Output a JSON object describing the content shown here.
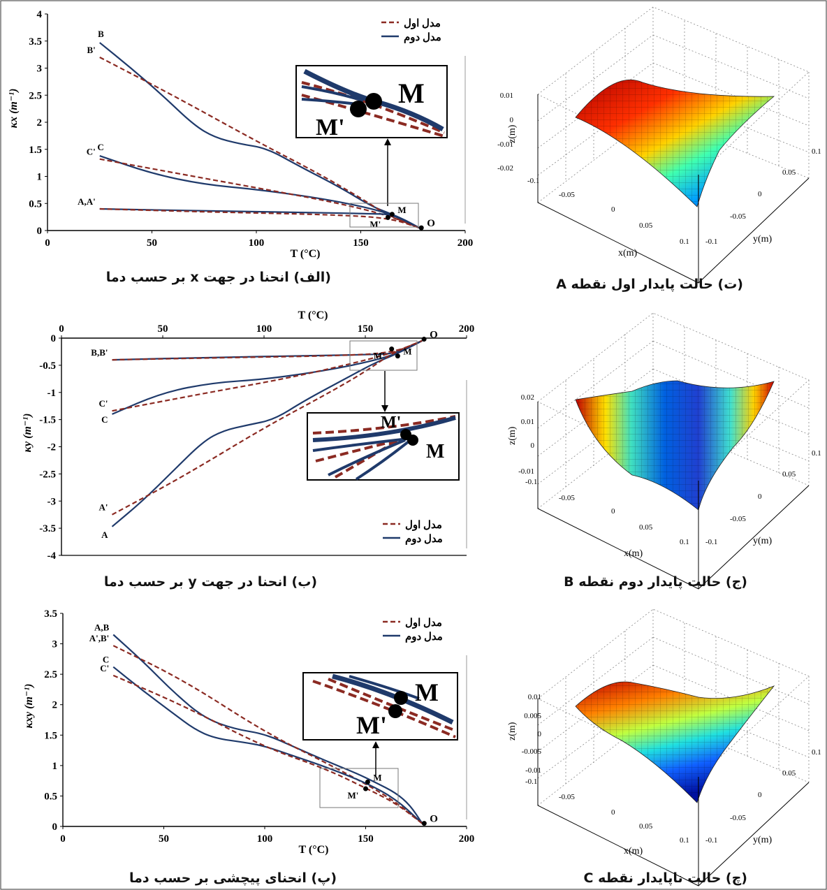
{
  "colors": {
    "model1": "#8B2A22",
    "model2": "#1F3A6B",
    "frame": "#444444"
  },
  "captions": {
    "a": "(الف) انحنا در جهت x بر حسب دما",
    "b": "(ب) انحنا در جهت y بر حسب دما",
    "p": "(پ) انحنای پیچشی بر حسب دما",
    "t": "(ت) حالت پایدار اول نقطه A",
    "j": "(ج) حالت پایدار دوم نقطه B",
    "ch": "(چ) حالت ناپایدار نقطه C"
  },
  "chart_data": [
    {
      "type": "line",
      "id": "kx",
      "xlabel": "T (°C)",
      "ylabel": "κx (m⁻¹)",
      "xlim": [
        0,
        200
      ],
      "ylim": [
        0,
        4
      ],
      "xticks": [
        0,
        50,
        100,
        150,
        200
      ],
      "yticks": [
        0,
        0.5,
        1,
        1.5,
        2,
        2.5,
        3,
        3.5,
        4
      ],
      "x_axis_position": "bottom",
      "legend": {
        "position": "top-right",
        "entries": [
          "مدل اول",
          "مدل دوم"
        ]
      },
      "series": [
        {
          "name": "مدل دوم",
          "label": "B",
          "style": "solid",
          "points": [
            [
              25,
              3.47
            ],
            [
              40,
              3.0
            ],
            [
              55,
              2.5
            ],
            [
              70,
              1.95
            ],
            [
              80,
              1.72
            ],
            [
              92,
              1.6
            ],
            [
              105,
              1.52
            ],
            [
              120,
              1.2
            ],
            [
              140,
              0.8
            ],
            [
              155,
              0.45
            ],
            [
              165,
              0.3
            ],
            [
              172,
              0.18
            ],
            [
              178,
              0.05
            ]
          ]
        },
        {
          "name": "مدل اول",
          "label": "B'",
          "style": "dashed",
          "points": [
            [
              25,
              3.2
            ],
            [
              60,
              2.5
            ],
            [
              100,
              1.65
            ],
            [
              130,
              1.05
            ],
            [
              150,
              0.6
            ],
            [
              163,
              0.28
            ],
            [
              178,
              0.05
            ]
          ]
        },
        {
          "name": "مدل دوم",
          "label": "C",
          "style": "solid",
          "points": [
            [
              25,
              1.38
            ],
            [
              50,
              1.05
            ],
            [
              75,
              0.85
            ],
            [
              100,
              0.76
            ],
            [
              130,
              0.6
            ],
            [
              150,
              0.45
            ],
            [
              165,
              0.3
            ],
            [
              178,
              0.05
            ]
          ]
        },
        {
          "name": "مدل اول",
          "label": "C'",
          "style": "dashed",
          "points": [
            [
              25,
              1.32
            ],
            [
              70,
              1.0
            ],
            [
              110,
              0.72
            ],
            [
              140,
              0.5
            ],
            [
              163,
              0.28
            ],
            [
              178,
              0.05
            ]
          ]
        },
        {
          "name": "مدل دوم",
          "label": "A,A'",
          "style": "solid",
          "points": [
            [
              25,
              0.4
            ],
            [
              80,
              0.36
            ],
            [
              130,
              0.33
            ],
            [
              155,
              0.31
            ],
            [
              165,
              0.3
            ],
            [
              178,
              0.05
            ]
          ]
        },
        {
          "name": "مدل اول",
          "label": "",
          "style": "dashed",
          "points": [
            [
              25,
              0.4
            ],
            [
              80,
              0.34
            ],
            [
              130,
              0.3
            ],
            [
              163,
              0.24
            ],
            [
              178,
              0.05
            ]
          ]
        }
      ],
      "annotations": [
        {
          "text": "M",
          "x": 165,
          "y": 0.3
        },
        {
          "text": "M'",
          "x": 163,
          "y": 0.24
        },
        {
          "text": "O",
          "x": 179,
          "y": 0.05
        }
      ],
      "inset": {
        "labels": [
          "M",
          "M'"
        ]
      }
    },
    {
      "type": "line",
      "id": "ky",
      "xlabel": "T (°C)",
      "ylabel": "κy (m⁻¹)",
      "xlim": [
        0,
        200
      ],
      "ylim": [
        -4,
        0
      ],
      "xticks": [
        0,
        50,
        100,
        150,
        200
      ],
      "yticks": [
        0,
        -0.5,
        -1,
        -1.5,
        -2,
        -2.5,
        -3,
        -3.5,
        -4
      ],
      "x_axis_position": "top",
      "legend": {
        "position": "bottom-right",
        "entries": [
          "مدل اول",
          "مدل دوم"
        ]
      },
      "series": [
        {
          "name": "مدل دوم",
          "label": "B,B'",
          "style": "solid",
          "points": [
            [
              25,
              -0.4
            ],
            [
              80,
              -0.35
            ],
            [
              130,
              -0.32
            ],
            [
              155,
              -0.3
            ],
            [
              165,
              -0.28
            ],
            [
              178,
              -0.05
            ]
          ]
        },
        {
          "name": "مدل اول",
          "label": "",
          "style": "dashed",
          "points": [
            [
              25,
              -0.4
            ],
            [
              80,
              -0.36
            ],
            [
              130,
              -0.33
            ],
            [
              163,
              -0.28
            ],
            [
              178,
              -0.05
            ]
          ]
        },
        {
          "name": "مدل دوم",
          "label": "C",
          "style": "solid",
          "points": [
            [
              25,
              -1.4
            ],
            [
              50,
              -1.0
            ],
            [
              75,
              -0.82
            ],
            [
              100,
              -0.76
            ],
            [
              130,
              -0.6
            ],
            [
              150,
              -0.45
            ],
            [
              165,
              -0.3
            ],
            [
              178,
              -0.05
            ]
          ]
        },
        {
          "name": "مدل اول",
          "label": "C'",
          "style": "dashed",
          "points": [
            [
              25,
              -1.34
            ],
            [
              70,
              -1.02
            ],
            [
              110,
              -0.75
            ],
            [
              140,
              -0.5
            ],
            [
              163,
              -0.28
            ],
            [
              178,
              -0.05
            ]
          ]
        },
        {
          "name": "مدل دوم",
          "label": "A",
          "style": "solid",
          "points": [
            [
              25,
              -3.47
            ],
            [
              40,
              -3.0
            ],
            [
              55,
              -2.45
            ],
            [
              70,
              -1.9
            ],
            [
              80,
              -1.7
            ],
            [
              92,
              -1.6
            ],
            [
              105,
              -1.5
            ],
            [
              120,
              -1.15
            ],
            [
              140,
              -0.75
            ],
            [
              155,
              -0.45
            ],
            [
              165,
              -0.3
            ],
            [
              178,
              -0.05
            ]
          ]
        },
        {
          "name": "مدل اول",
          "label": "A'",
          "style": "dashed",
          "points": [
            [
              25,
              -3.25
            ],
            [
              60,
              -2.55
            ],
            [
              100,
              -1.65
            ],
            [
              130,
              -1.05
            ],
            [
              150,
              -0.62
            ],
            [
              163,
              -0.28
            ],
            [
              178,
              -0.05
            ]
          ]
        }
      ],
      "annotations": [
        {
          "text": "M'",
          "x": 163,
          "y": -0.2
        },
        {
          "text": "M",
          "x": 166,
          "y": -0.33
        },
        {
          "text": "O",
          "x": 179,
          "y": -0.02
        }
      ],
      "inset": {
        "labels": [
          "M'",
          "M"
        ]
      }
    },
    {
      "type": "line",
      "id": "kxy",
      "xlabel": "T (°C)",
      "ylabel": "κxy (m⁻¹)",
      "xlim": [
        0,
        200
      ],
      "ylim": [
        0,
        3.5
      ],
      "xticks": [
        0,
        50,
        100,
        150,
        200
      ],
      "yticks": [
        0,
        0.5,
        1,
        1.5,
        2,
        2.5,
        3,
        3.5
      ],
      "x_axis_position": "bottom",
      "legend": {
        "position": "top-right",
        "entries": [
          "مدل اول",
          "مدل دوم"
        ]
      },
      "series": [
        {
          "name": "مدل دوم",
          "label": "A,B",
          "style": "solid",
          "points": [
            [
              25,
              3.15
            ],
            [
              40,
              2.7
            ],
            [
              55,
              2.2
            ],
            [
              70,
              1.78
            ],
            [
              85,
              1.6
            ],
            [
              100,
              1.52
            ],
            [
              115,
              1.3
            ],
            [
              130,
              1.08
            ],
            [
              145,
              0.88
            ],
            [
              155,
              0.72
            ],
            [
              165,
              0.55
            ],
            [
              172,
              0.35
            ],
            [
              178,
              0.05
            ]
          ]
        },
        {
          "name": "مدل اول",
          "label": "A',B'",
          "style": "dashed",
          "points": [
            [
              25,
              2.97
            ],
            [
              60,
              2.4
            ],
            [
              100,
              1.55
            ],
            [
              130,
              1.05
            ],
            [
              150,
              0.7
            ],
            [
              165,
              0.4
            ],
            [
              178,
              0.05
            ]
          ]
        },
        {
          "name": "مدل دوم",
          "label": "C",
          "style": "solid",
          "points": [
            [
              25,
              2.62
            ],
            [
              40,
              2.22
            ],
            [
              55,
              1.85
            ],
            [
              65,
              1.6
            ],
            [
              75,
              1.45
            ],
            [
              90,
              1.38
            ],
            [
              100,
              1.32
            ],
            [
              115,
              1.15
            ],
            [
              130,
              0.98
            ],
            [
              150,
              0.72
            ],
            [
              165,
              0.45
            ],
            [
              178,
              0.05
            ]
          ]
        },
        {
          "name": "مدل اول",
          "label": "C'",
          "style": "dashed",
          "points": [
            [
              25,
              2.48
            ],
            [
              60,
              1.98
            ],
            [
              100,
              1.3
            ],
            [
              130,
              0.95
            ],
            [
              150,
              0.63
            ],
            [
              165,
              0.38
            ],
            [
              178,
              0.05
            ]
          ]
        }
      ],
      "annotations": [
        {
          "text": "M",
          "x": 151,
          "y": 0.73
        },
        {
          "text": "M'",
          "x": 150,
          "y": 0.62
        },
        {
          "text": "O",
          "x": 179,
          "y": 0.05
        }
      ],
      "inset": {
        "labels": [
          "M",
          "M'"
        ]
      }
    },
    {
      "type": "surface",
      "id": "surfA",
      "xlabel": "x(m)",
      "ylabel": "y(m)",
      "zlabel": "z(m)",
      "xticks": [
        "-0.1",
        "-0.05",
        "0",
        "0.05",
        "0.1"
      ],
      "yticks": [
        "-0.1",
        "-0.05",
        "0",
        "0.05",
        "0.1"
      ],
      "zticks": [
        "-0.02",
        "-0.01",
        "0",
        "0.01"
      ],
      "zlim": [
        -0.02,
        0.01
      ],
      "colormap": "jet"
    },
    {
      "type": "surface",
      "id": "surfB",
      "xlabel": "x(m)",
      "ylabel": "y(m)",
      "zlabel": "z(m)",
      "xticks": [
        "-0.1",
        "-0.05",
        "0",
        "0.05",
        "0.1"
      ],
      "yticks": [
        "-0.1",
        "-0.05",
        "0",
        "0.05",
        "0.1"
      ],
      "zticks": [
        "-0.01",
        "0",
        "0.01",
        "0.02"
      ],
      "zlim": [
        -0.01,
        0.02
      ],
      "colormap": "jet"
    },
    {
      "type": "surface",
      "id": "surfC",
      "xlabel": "x(m)",
      "ylabel": "y(m)",
      "zlabel": "z(m)",
      "xticks": [
        "-0.1",
        "-0.05",
        "0",
        "0.05",
        "0.1"
      ],
      "yticks": [
        "-0.1",
        "-0.05",
        "0",
        "0.05",
        "0.1"
      ],
      "zticks": [
        "-0.01",
        "-0.005",
        "0",
        "0.005",
        "0.01"
      ],
      "zlim": [
        -0.01,
        0.01
      ],
      "colormap": "jet"
    }
  ]
}
